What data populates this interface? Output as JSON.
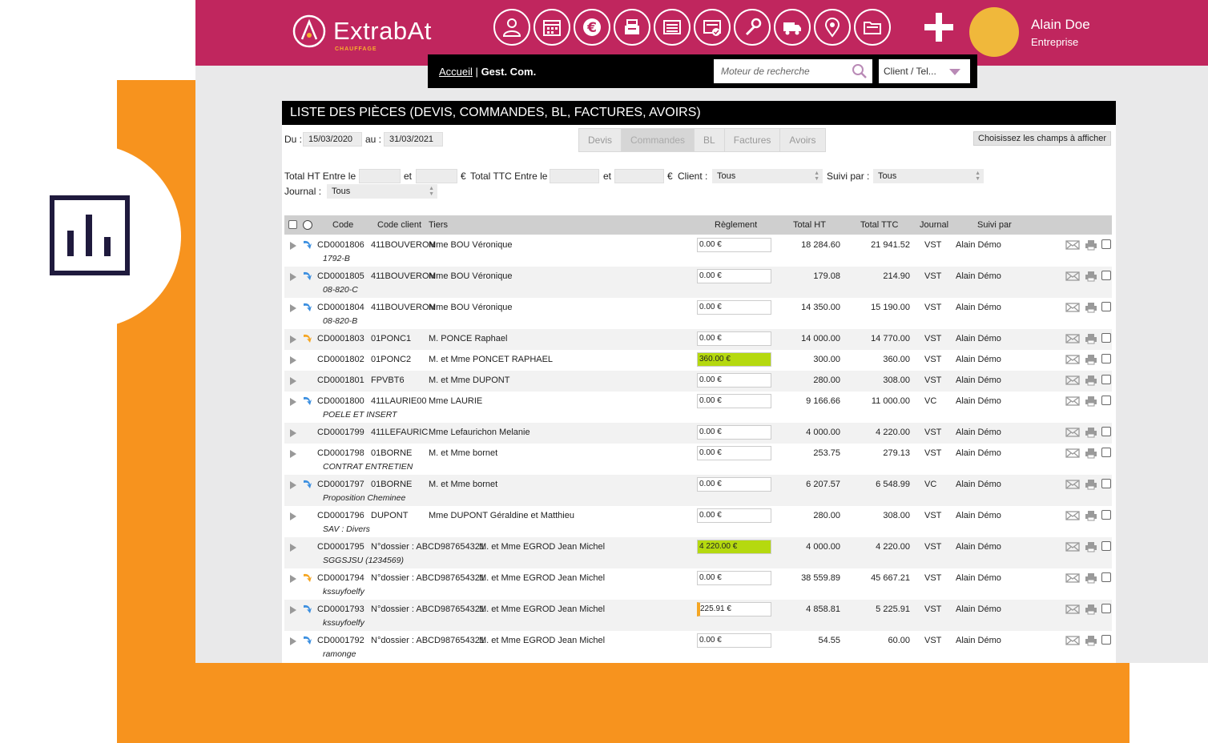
{
  "brand": {
    "name": "ExtrabAt",
    "sub": "CHAUFFAGE"
  },
  "nav_icons": [
    "user-icon",
    "calendar-icon",
    "euro-icon",
    "register-icon",
    "list-icon",
    "invoice-check-icon",
    "wrench-icon",
    "truck-icon",
    "location-icon",
    "folder-icon"
  ],
  "user": {
    "name": "Alain Doe",
    "role": "Entreprise"
  },
  "breadcrumb": {
    "home": "Accueil",
    "sep": "|",
    "current": "Gest. Com."
  },
  "search": {
    "placeholder": "Moteur de recherche",
    "scope": "Client / Tel..."
  },
  "panel": {
    "title": "LISTE DES PIÈCES (DEVIS, COMMANDES, BL, FACTURES, AVOIRS)"
  },
  "filters": {
    "du_label": "Du :",
    "du": "15/03/2020",
    "au_label": "au :",
    "au": "31/03/2021",
    "tabs": [
      "Devis",
      "Commandes",
      "BL",
      "Factures",
      "Avoirs"
    ],
    "active_tab": "Commandes",
    "fields_button": "Choisissez les champs à afficher",
    "total_ht_label": "Total HT Entre le",
    "et": "et",
    "euro": "€",
    "total_ttc_label": "Total TTC Entre le",
    "client_label": "Client :",
    "client": "Tous",
    "suivi_label": "Suivi par :",
    "suivi": "Tous",
    "journal_label": "Journal :",
    "journal": "Tous"
  },
  "columns": [
    "Code",
    "Code client",
    "Tiers",
    "Règlement",
    "Total HT",
    "Total TTC",
    "Journal",
    "Suivi par"
  ],
  "rows": [
    {
      "code": "CD0001806",
      "client": "411BOUVERON",
      "tiers": "Mme BOU Véronique",
      "sub": "1792-B",
      "reg": "0.00 €",
      "ht": "18 284.60",
      "ttc": "21 941.52",
      "journal": "VST",
      "suivi": "Alain Démo",
      "icon": "blue",
      "regstate": "none"
    },
    {
      "code": "CD0001805",
      "client": "411BOUVERON",
      "tiers": "Mme BOU Véronique",
      "sub": "08-820-C",
      "reg": "0.00 €",
      "ht": "179.08",
      "ttc": "214.90",
      "journal": "VST",
      "suivi": "Alain Démo",
      "icon": "blue",
      "regstate": "none"
    },
    {
      "code": "CD0001804",
      "client": "411BOUVERON",
      "tiers": "Mme BOU Véronique",
      "sub": "08-820-B",
      "reg": "0.00 €",
      "ht": "14 350.00",
      "ttc": "15 190.00",
      "journal": "VST",
      "suivi": "Alain Démo",
      "icon": "blue",
      "regstate": "none"
    },
    {
      "code": "CD0001803",
      "client": "01PONC1",
      "tiers": "M. PONCE Raphael",
      "sub": "",
      "reg": "0.00 €",
      "ht": "14 000.00",
      "ttc": "14 770.00",
      "journal": "VST",
      "suivi": "Alain Démo",
      "icon": "orange",
      "regstate": "none"
    },
    {
      "code": "CD0001802",
      "client": "01PONC2",
      "tiers": "M. et Mme PONCET RAPHAEL",
      "sub": "",
      "reg": "360.00 €",
      "ht": "300.00",
      "ttc": "360.00",
      "journal": "VST",
      "suivi": "Alain Démo",
      "icon": "none",
      "regstate": "ok"
    },
    {
      "code": "CD0001801",
      "client": "FPVBT6",
      "tiers": "M. et Mme DUPONT",
      "sub": "",
      "reg": "0.00 €",
      "ht": "280.00",
      "ttc": "308.00",
      "journal": "VST",
      "suivi": "Alain Démo",
      "icon": "none",
      "regstate": "none"
    },
    {
      "code": "CD0001800",
      "client": "411LAURIE00",
      "tiers": "Mme LAURIE",
      "sub": "POELE ET INSERT",
      "reg": "0.00 €",
      "ht": "9 166.66",
      "ttc": "11 000.00",
      "journal": "VC",
      "suivi": "Alain Démo",
      "icon": "blue",
      "regstate": "none"
    },
    {
      "code": "CD0001799",
      "client": "411LEFAURIC",
      "tiers": "Mme Lefaurichon Melanie",
      "sub": "",
      "reg": "0.00 €",
      "ht": "4 000.00",
      "ttc": "4 220.00",
      "journal": "VST",
      "suivi": "Alain Démo",
      "icon": "none",
      "regstate": "none"
    },
    {
      "code": "CD0001798",
      "client": "01BORNE",
      "tiers": "M. et Mme bornet",
      "sub": "CONTRAT ENTRETIEN",
      "reg": "0.00 €",
      "ht": "253.75",
      "ttc": "279.13",
      "journal": "VST",
      "suivi": "Alain Démo",
      "icon": "none",
      "regstate": "none"
    },
    {
      "code": "CD0001797",
      "client": "01BORNE",
      "tiers": "M. et Mme bornet",
      "sub": "Proposition Cheminee",
      "reg": "0.00 €",
      "ht": "6 207.57",
      "ttc": "6 548.99",
      "journal": "VC",
      "suivi": "Alain Démo",
      "icon": "blue",
      "regstate": "none"
    },
    {
      "code": "CD0001796",
      "client": "DUPONT",
      "tiers": "Mme DUPONT Géraldine et Matthieu",
      "sub": "SAV : Divers",
      "reg": "0.00 €",
      "ht": "280.00",
      "ttc": "308.00",
      "journal": "VST",
      "suivi": "Alain Démo",
      "icon": "none",
      "regstate": "none"
    },
    {
      "code": "CD0001795",
      "client": "N°dossier : ABCD987654321",
      "tiers": "M. et Mme EGROD Jean Michel",
      "sub": "SGGSJSU (1234569)",
      "reg": "4 220.00 €",
      "ht": "4 000.00",
      "ttc": "4 220.00",
      "journal": "VST",
      "suivi": "Alain Démo",
      "icon": "none",
      "regstate": "ok"
    },
    {
      "code": "CD0001794",
      "client": "N°dossier : ABCD987654321",
      "tiers": "M. et Mme EGROD Jean Michel",
      "sub": "kssuyfoelfy",
      "reg": "0.00 €",
      "ht": "38 559.89",
      "ttc": "45 667.21",
      "journal": "VST",
      "suivi": "Alain Démo",
      "icon": "orange",
      "regstate": "none"
    },
    {
      "code": "CD0001793",
      "client": "N°dossier : ABCD987654321",
      "tiers": "M. et Mme EGROD Jean Michel",
      "sub": "kssuyfoelfy",
      "reg": "225.91 €",
      "ht": "4 858.81",
      "ttc": "5 225.91",
      "journal": "VST",
      "suivi": "Alain Démo",
      "icon": "blue",
      "regstate": "partial"
    },
    {
      "code": "CD0001792",
      "client": "N°dossier : ABCD987654321",
      "tiers": "M. et Mme EGROD Jean Michel",
      "sub": "ramonge",
      "reg": "0.00 €",
      "ht": "54.55",
      "ttc": "60.00",
      "journal": "VST",
      "suivi": "Alain Démo",
      "icon": "blue",
      "regstate": "none"
    }
  ],
  "colors": {
    "brand": "#c0265e",
    "accent": "#f7931e",
    "paid": "#b5d90f",
    "avatar": "#f0b83b"
  }
}
